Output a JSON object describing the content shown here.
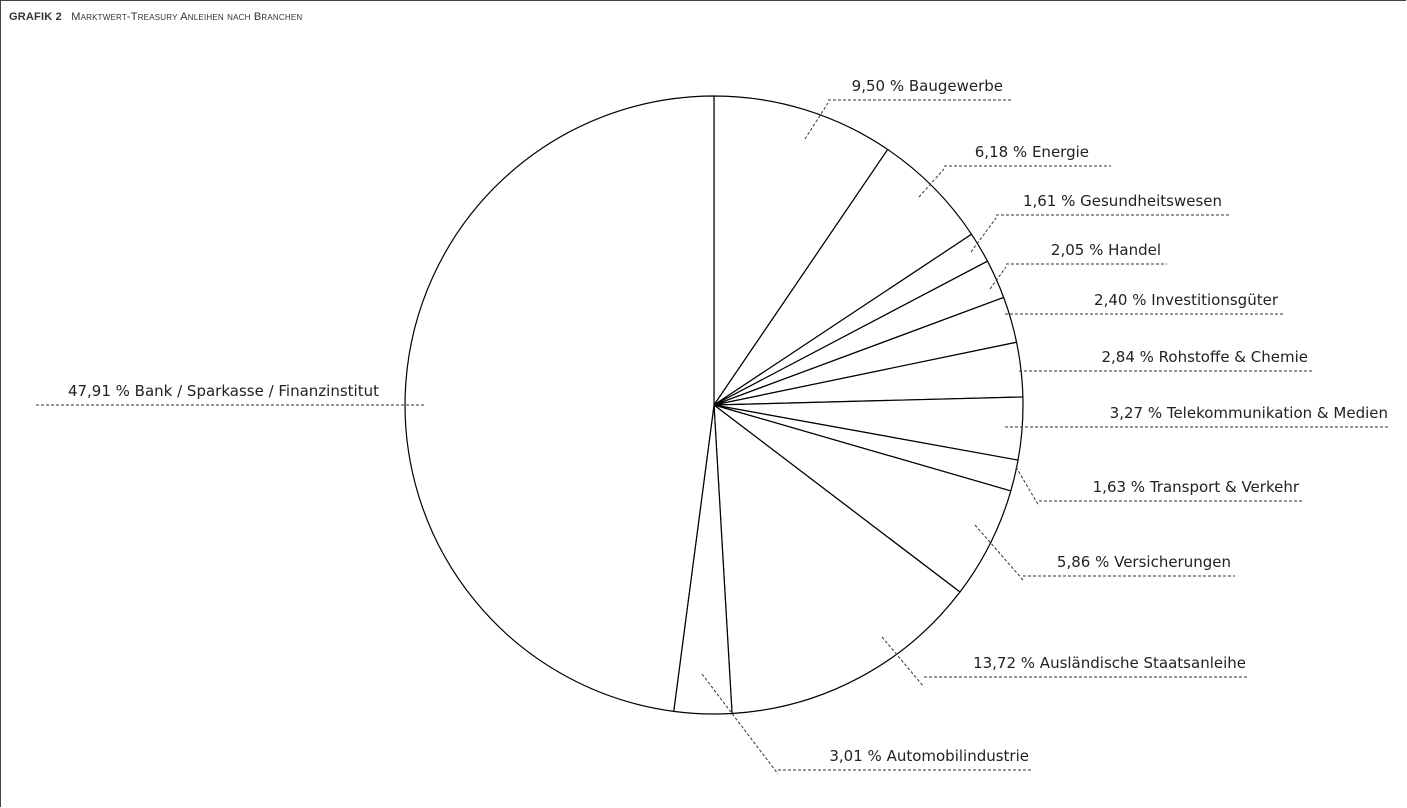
{
  "caption": {
    "lead": "Grafik 2",
    "title": "Marktwert-Treasury Anleihen nach Branchen"
  },
  "chart_data": {
    "type": "pie",
    "start_angle_deg": 0,
    "direction": "clockwise",
    "slice_fill": "#ffffff",
    "stroke_color": "#000000",
    "slices": [
      {
        "label": "Baugewerbe",
        "value": 9.5,
        "text": "9,50 % Baugewerbe"
      },
      {
        "label": "Energie",
        "value": 6.18,
        "text": "6,18 % Energie"
      },
      {
        "label": "Gesundheitswesen",
        "value": 1.61,
        "text": "1,61 % Gesundheitswesen"
      },
      {
        "label": "Handel",
        "value": 2.05,
        "text": "2,05 % Handel"
      },
      {
        "label": "Investitionsgüter",
        "value": 2.4,
        "text": "2,40 % Investitionsgüter"
      },
      {
        "label": "Rohstoffe & Chemie",
        "value": 2.84,
        "text": "2,84 % Rohstoffe & Chemie"
      },
      {
        "label": "Telekommunikation & Medien",
        "value": 3.27,
        "text": "3,27 % Telekommunikation & Medien"
      },
      {
        "label": "Transport & Verkehr",
        "value": 1.63,
        "text": "1,63 % Transport & Verkehr"
      },
      {
        "label": "Versicherungen",
        "value": 5.86,
        "text": "5,86 % Versicherungen"
      },
      {
        "label": "Ausländische Staatsanleihe",
        "value": 13.72,
        "text": "13,72 % Ausländische Staatsanleihe"
      },
      {
        "label": "Automobilindustrie",
        "value": 3.01,
        "text": "3,01 % Automobilindustrie"
      },
      {
        "label": "Bank / Sparkasse / Finanzinstitut",
        "value": 47.91,
        "text": "47,91 % Bank / Sparkasse / Finanzinstitut"
      }
    ]
  }
}
